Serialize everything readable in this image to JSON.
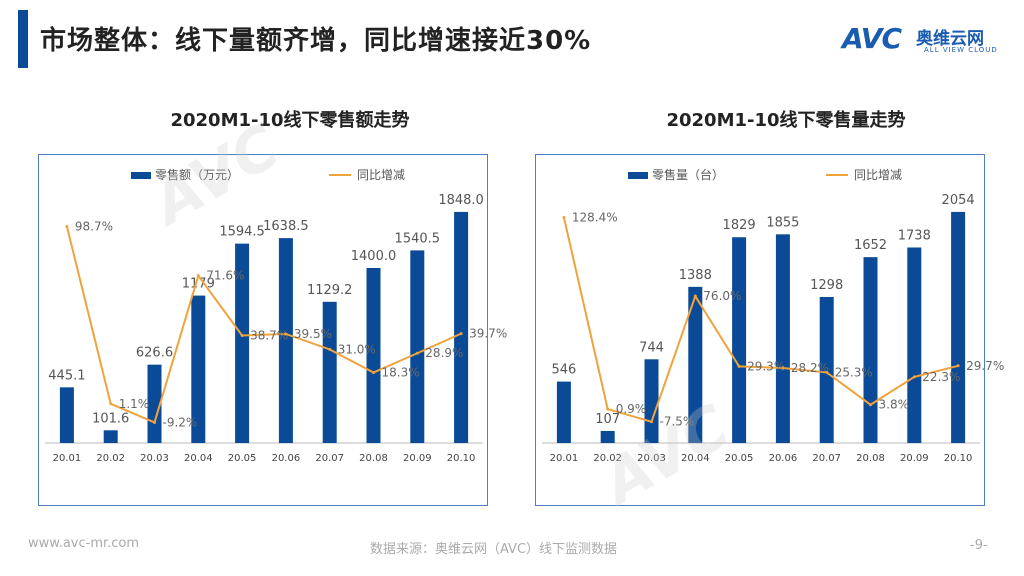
{
  "header": {
    "title": "市场整体：线下量额齐增，同比增速接近30%",
    "logo_mark": "AVC",
    "logo_cn": "奥维云网",
    "logo_en": "ALL VIEW CLOUD"
  },
  "colors": {
    "bar": "#0b4a96",
    "line": "#f0a33c",
    "frame": "#4e7fc0"
  },
  "chart_data": [
    {
      "type": "bar",
      "title": "2020M1-10线下零售额走势",
      "categories": [
        "20.01",
        "20.02",
        "20.03",
        "20.04",
        "20.05",
        "20.06",
        "20.07",
        "20.08",
        "20.09",
        "20.10"
      ],
      "series": [
        {
          "name": "零售额（万元）",
          "type": "bar",
          "values": [
            445.1,
            101.6,
            626.6,
            1179.0,
            1594.5,
            1638.5,
            1129.2,
            1400.0,
            1540.5,
            1848.0
          ],
          "labels": [
            "445.1",
            "101.6",
            "626.6",
            "1179",
            "1594.5",
            "1638.5",
            "1129.2",
            "1400.0",
            "1540.5",
            "1848.0"
          ]
        },
        {
          "name": "同比增减",
          "type": "line",
          "values": [
            98.7,
            1.1,
            -9.2,
            71.6,
            38.7,
            39.5,
            31.0,
            18.3,
            28.9,
            39.7
          ],
          "labels": [
            "98.7%",
            "1.1%",
            "-9.2%",
            "71.6%",
            "38.7%",
            "39.5%",
            "31.0%",
            "18.3%",
            "28.9%",
            "39.7%"
          ]
        }
      ],
      "legend": [
        "零售额（万元）",
        "同比增减"
      ]
    },
    {
      "type": "bar",
      "title": "2020M1-10线下零售量走势",
      "categories": [
        "20.01",
        "20.02",
        "20.03",
        "20.04",
        "20.05",
        "20.06",
        "20.07",
        "20.08",
        "20.09",
        "20.10"
      ],
      "series": [
        {
          "name": "零售量（台）",
          "type": "bar",
          "values": [
            546,
            107,
            744,
            1388,
            1829,
            1855,
            1298,
            1652,
            1738,
            2054
          ],
          "labels": [
            "546",
            "107",
            "744",
            "1388",
            "1829",
            "1855",
            "1298",
            "1652",
            "1738",
            "2054"
          ]
        },
        {
          "name": "同比增减",
          "type": "line",
          "values": [
            128.4,
            0.9,
            -7.5,
            76.0,
            29.3,
            28.2,
            25.3,
            3.8,
            22.3,
            29.7
          ],
          "labels": [
            "128.4%",
            "0.9%",
            "-7.5%",
            "76.0%",
            "29.3%",
            "28.2%",
            "25.3%",
            "3.8%",
            "22.3%",
            "29.7%"
          ]
        }
      ],
      "legend": [
        "零售量（台）",
        "同比增减"
      ]
    }
  ],
  "footer": {
    "website": "www.avc-mr.com",
    "source": "数据来源：奥维云网（AVC）线下监测数据",
    "page": "-9-"
  }
}
